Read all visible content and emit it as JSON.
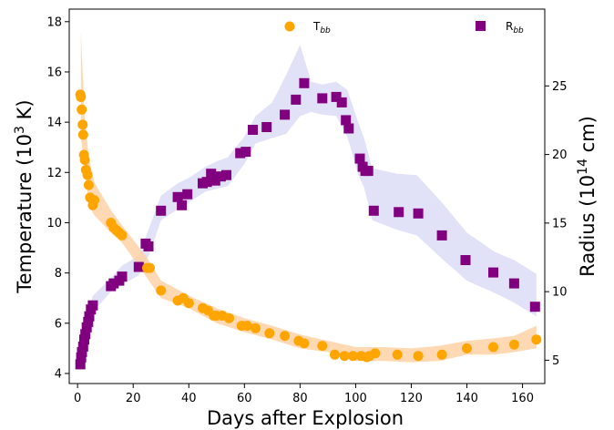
{
  "chart_data": {
    "type": "scatter",
    "title": "",
    "xlabel": "Days after Explosion",
    "ylabel_left": "Temperature (10^3 K)",
    "ylabel_right": "Radius (10^14 cm)",
    "xlim": [
      -3,
      168
    ],
    "ylim_left": [
      3.6,
      18.5
    ],
    "ylim_right": [
      3.3,
      30.6
    ],
    "x_ticks": [
      0,
      20,
      40,
      60,
      80,
      100,
      120,
      140,
      160
    ],
    "y_ticks_left": [
      4,
      6,
      8,
      10,
      12,
      14,
      16,
      18
    ],
    "y_ticks_right": [
      5,
      10,
      15,
      20,
      25
    ],
    "grid": false,
    "legend": [
      {
        "label": "T",
        "sub": "bb",
        "marker": "circle",
        "color": "#FFA500",
        "series": "Tbb"
      },
      {
        "label": "R",
        "sub": "bb",
        "marker": "square",
        "color": "#800080",
        "series": "Rbb"
      }
    ],
    "series": [
      {
        "name": "Tbb",
        "axis": "left",
        "color": "#FFA500",
        "band_color": "#FFCC99",
        "points": [
          [
            1.0,
            15.1
          ],
          [
            1.2,
            15.0
          ],
          [
            1.5,
            14.5
          ],
          [
            1.8,
            13.9
          ],
          [
            2.0,
            13.5
          ],
          [
            2.3,
            12.7
          ],
          [
            2.6,
            12.5
          ],
          [
            3.0,
            12.1
          ],
          [
            3.6,
            11.9
          ],
          [
            4.0,
            11.5
          ],
          [
            4.5,
            11.0
          ],
          [
            5.5,
            10.7
          ],
          [
            6.0,
            10.9
          ],
          [
            12.0,
            10.0
          ],
          [
            13.0,
            9.8
          ],
          [
            14.0,
            9.7
          ],
          [
            15.0,
            9.6
          ],
          [
            16.0,
            9.5
          ],
          [
            25.0,
            8.2
          ],
          [
            26.0,
            8.2
          ],
          [
            30.0,
            7.3
          ],
          [
            36.0,
            6.9
          ],
          [
            38.0,
            7.0
          ],
          [
            40.0,
            6.8
          ],
          [
            45.0,
            6.6
          ],
          [
            47.0,
            6.5
          ],
          [
            49.0,
            6.3
          ],
          [
            50.0,
            6.3
          ],
          [
            52.0,
            6.3
          ],
          [
            54.5,
            6.2
          ],
          [
            59.0,
            5.9
          ],
          [
            61.0,
            5.9
          ],
          [
            64.0,
            5.8
          ],
          [
            69.0,
            5.6
          ],
          [
            74.5,
            5.5
          ],
          [
            79.5,
            5.3
          ],
          [
            81.5,
            5.2
          ],
          [
            88.0,
            5.1
          ],
          [
            92.5,
            4.75
          ],
          [
            96.0,
            4.7
          ],
          [
            99.0,
            4.7
          ],
          [
            102.0,
            4.7
          ],
          [
            104.0,
            4.65
          ],
          [
            105.0,
            4.7
          ],
          [
            107.0,
            4.8
          ],
          [
            115.0,
            4.75
          ],
          [
            122.5,
            4.7
          ],
          [
            131.0,
            4.75
          ],
          [
            140.0,
            5.0
          ],
          [
            149.5,
            5.05
          ],
          [
            157.0,
            5.15
          ],
          [
            165.0,
            5.35
          ]
        ],
        "band_upper": [
          [
            1.2,
            17.6
          ],
          [
            2.5,
            14.3
          ],
          [
            4.0,
            12.6
          ],
          [
            6.0,
            11.6
          ],
          [
            12.0,
            10.5
          ],
          [
            16.0,
            9.9
          ],
          [
            25.0,
            8.6
          ],
          [
            30.0,
            7.7
          ],
          [
            40.0,
            7.1
          ],
          [
            50.0,
            6.6
          ],
          [
            60.0,
            6.2
          ],
          [
            70.0,
            5.9
          ],
          [
            80.0,
            5.55
          ],
          [
            90.0,
            5.3
          ],
          [
            100.0,
            5.05
          ],
          [
            110.0,
            5.05
          ],
          [
            120.0,
            5.0
          ],
          [
            130.0,
            5.1
          ],
          [
            140.0,
            5.3
          ],
          [
            150.0,
            5.4
          ],
          [
            157.0,
            5.5
          ],
          [
            165.0,
            5.9
          ]
        ],
        "band_lower": [
          [
            1.2,
            13.4
          ],
          [
            2.5,
            12.2
          ],
          [
            4.0,
            10.7
          ],
          [
            6.0,
            10.3
          ],
          [
            12.0,
            9.6
          ],
          [
            16.0,
            9.2
          ],
          [
            25.0,
            7.8
          ],
          [
            30.0,
            7.0
          ],
          [
            40.0,
            6.6
          ],
          [
            50.0,
            6.0
          ],
          [
            60.0,
            5.65
          ],
          [
            70.0,
            5.35
          ],
          [
            80.0,
            5.0
          ],
          [
            90.0,
            4.85
          ],
          [
            100.0,
            4.5
          ],
          [
            110.0,
            4.5
          ],
          [
            120.0,
            4.45
          ],
          [
            130.0,
            4.5
          ],
          [
            140.0,
            4.75
          ],
          [
            150.0,
            4.75
          ],
          [
            157.0,
            4.85
          ],
          [
            165.0,
            5.0
          ]
        ]
      },
      {
        "name": "Rbb",
        "axis": "right",
        "color": "#800080",
        "band_color": "#C8C8F0",
        "points": [
          [
            1.0,
            4.7
          ],
          [
            1.3,
            5.2
          ],
          [
            1.6,
            5.6
          ],
          [
            2.0,
            6.0
          ],
          [
            2.4,
            6.5
          ],
          [
            2.8,
            6.9
          ],
          [
            3.3,
            7.4
          ],
          [
            3.8,
            7.8
          ],
          [
            4.2,
            8.2
          ],
          [
            4.8,
            8.7
          ],
          [
            5.5,
            9.0
          ],
          [
            12.0,
            10.4
          ],
          [
            13.0,
            10.6
          ],
          [
            15.0,
            10.8
          ],
          [
            16.0,
            11.1
          ],
          [
            22.0,
            11.8
          ],
          [
            24.5,
            13.5
          ],
          [
            25.5,
            13.3
          ],
          [
            30.0,
            15.9
          ],
          [
            36.0,
            16.9
          ],
          [
            37.5,
            16.3
          ],
          [
            39.5,
            17.1
          ],
          [
            45.0,
            17.9
          ],
          [
            46.5,
            18.0
          ],
          [
            48.0,
            18.6
          ],
          [
            49.5,
            18.1
          ],
          [
            51.5,
            18.4
          ],
          [
            53.5,
            18.5
          ],
          [
            58.5,
            20.1
          ],
          [
            60.5,
            20.2
          ],
          [
            63.0,
            21.8
          ],
          [
            68.0,
            22.0
          ],
          [
            74.5,
            22.9
          ],
          [
            78.5,
            24.0
          ],
          [
            81.5,
            25.2
          ],
          [
            88.0,
            24.1
          ],
          [
            93.0,
            24.2
          ],
          [
            95.0,
            23.8
          ],
          [
            96.5,
            22.5
          ],
          [
            97.5,
            21.9
          ],
          [
            101.5,
            19.7
          ],
          [
            102.5,
            19.1
          ],
          [
            103.5,
            18.8
          ],
          [
            104.5,
            18.8
          ],
          [
            106.5,
            15.9
          ],
          [
            115.5,
            15.8
          ],
          [
            122.5,
            15.7
          ],
          [
            131.0,
            14.1
          ],
          [
            139.5,
            12.3
          ],
          [
            149.5,
            11.4
          ],
          [
            157.0,
            10.6
          ],
          [
            164.5,
            8.9
          ]
        ],
        "band_upper": [
          [
            1.0,
            5.2
          ],
          [
            3.0,
            7.7
          ],
          [
            5.5,
            9.7
          ],
          [
            12.0,
            11.0
          ],
          [
            16.0,
            11.9
          ],
          [
            22.0,
            12.6
          ],
          [
            26.0,
            14.8
          ],
          [
            30.0,
            17.0
          ],
          [
            36.0,
            17.9
          ],
          [
            40.0,
            18.3
          ],
          [
            46.0,
            19.1
          ],
          [
            50.0,
            19.5
          ],
          [
            54.0,
            19.8
          ],
          [
            60.0,
            21.3
          ],
          [
            64.0,
            22.8
          ],
          [
            70.0,
            23.8
          ],
          [
            75.0,
            25.8
          ],
          [
            80.0,
            28.0
          ],
          [
            84.0,
            25.3
          ],
          [
            88.0,
            25.1
          ],
          [
            93.0,
            25.3
          ],
          [
            97.0,
            24.7
          ],
          [
            101.0,
            22.3
          ],
          [
            103.0,
            21.2
          ],
          [
            106.0,
            19.0
          ],
          [
            115.0,
            18.6
          ],
          [
            122.0,
            18.5
          ],
          [
            131.0,
            16.5
          ],
          [
            140.0,
            14.3
          ],
          [
            150.0,
            12.9
          ],
          [
            157.0,
            12.3
          ],
          [
            165.0,
            11.3
          ]
        ],
        "band_lower": [
          [
            1.0,
            4.5
          ],
          [
            3.0,
            6.6
          ],
          [
            5.5,
            8.5
          ],
          [
            12.0,
            10.0
          ],
          [
            16.0,
            10.5
          ],
          [
            22.0,
            11.2
          ],
          [
            26.0,
            12.8
          ],
          [
            30.0,
            15.2
          ],
          [
            36.0,
            16.0
          ],
          [
            40.0,
            16.5
          ],
          [
            46.0,
            17.3
          ],
          [
            50.0,
            17.5
          ],
          [
            54.0,
            17.7
          ],
          [
            60.0,
            19.3
          ],
          [
            64.0,
            20.8
          ],
          [
            70.0,
            21.2
          ],
          [
            75.0,
            21.5
          ],
          [
            80.0,
            22.8
          ],
          [
            84.0,
            23.1
          ],
          [
            88.0,
            22.9
          ],
          [
            93.0,
            22.8
          ],
          [
            97.0,
            21.3
          ],
          [
            101.0,
            18.5
          ],
          [
            103.0,
            17.6
          ],
          [
            106.0,
            15.2
          ],
          [
            115.0,
            14.5
          ],
          [
            122.0,
            14.1
          ],
          [
            131.0,
            12.4
          ],
          [
            140.0,
            10.8
          ],
          [
            150.0,
            9.9
          ],
          [
            157.0,
            9.2
          ],
          [
            165.0,
            8.2
          ]
        ]
      }
    ]
  }
}
